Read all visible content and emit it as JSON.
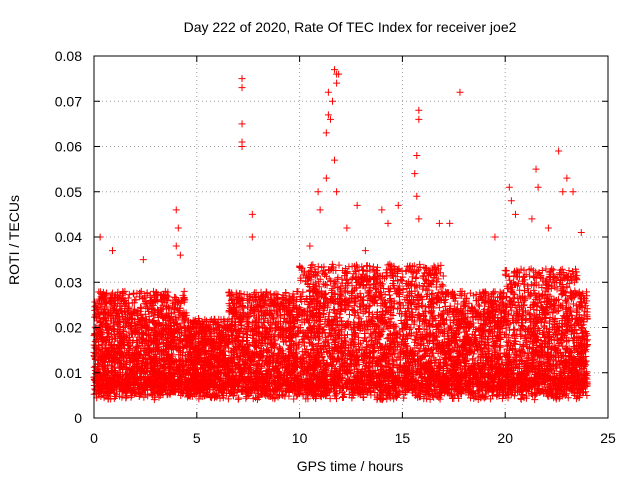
{
  "chart_data": {
    "type": "scatter",
    "title": "Day 222 of 2020, Rate Of TEC Index for receiver joe2",
    "xlabel": "GPS time / hours",
    "ylabel": "ROTI / TECUs",
    "xlim": [
      0,
      25
    ],
    "ylim": [
      0,
      0.08
    ],
    "x_ticks": [
      0,
      5,
      10,
      15,
      20,
      25
    ],
    "x_tick_labels": [
      "0",
      "5",
      "10",
      "15",
      "20",
      "25"
    ],
    "y_ticks": [
      0,
      0.01,
      0.02,
      0.03,
      0.04,
      0.05,
      0.06,
      0.07,
      0.08
    ],
    "y_tick_labels": [
      "0",
      "0.01",
      "0.02",
      "0.03",
      "0.04",
      "0.05",
      "0.06",
      "0.07",
      "0.08"
    ],
    "grid": true,
    "marker": "plus",
    "marker_color": "#ff0000",
    "dense_band": {
      "x_range": [
        0,
        24
      ],
      "y_typical": [
        0.003,
        0.03
      ]
    },
    "outliers": [
      {
        "x": 0.3,
        "y": 0.04
      },
      {
        "x": 0.9,
        "y": 0.037
      },
      {
        "x": 2.4,
        "y": 0.035
      },
      {
        "x": 4.0,
        "y": 0.046
      },
      {
        "x": 4.1,
        "y": 0.042
      },
      {
        "x": 4.0,
        "y": 0.038
      },
      {
        "x": 4.2,
        "y": 0.036
      },
      {
        "x": 7.2,
        "y": 0.075
      },
      {
        "x": 7.2,
        "y": 0.073
      },
      {
        "x": 7.2,
        "y": 0.065
      },
      {
        "x": 7.2,
        "y": 0.061
      },
      {
        "x": 7.2,
        "y": 0.06
      },
      {
        "x": 7.7,
        "y": 0.045
      },
      {
        "x": 7.7,
        "y": 0.04
      },
      {
        "x": 10.5,
        "y": 0.038
      },
      {
        "x": 10.9,
        "y": 0.05
      },
      {
        "x": 11.0,
        "y": 0.046
      },
      {
        "x": 11.3,
        "y": 0.053
      },
      {
        "x": 11.3,
        "y": 0.063
      },
      {
        "x": 11.4,
        "y": 0.067
      },
      {
        "x": 11.5,
        "y": 0.066
      },
      {
        "x": 11.4,
        "y": 0.072
      },
      {
        "x": 11.6,
        "y": 0.07
      },
      {
        "x": 11.7,
        "y": 0.077
      },
      {
        "x": 11.8,
        "y": 0.076
      },
      {
        "x": 11.9,
        "y": 0.076
      },
      {
        "x": 11.8,
        "y": 0.074
      },
      {
        "x": 11.7,
        "y": 0.057
      },
      {
        "x": 11.8,
        "y": 0.05
      },
      {
        "x": 12.3,
        "y": 0.042
      },
      {
        "x": 12.8,
        "y": 0.047
      },
      {
        "x": 13.2,
        "y": 0.037
      },
      {
        "x": 14.0,
        "y": 0.046
      },
      {
        "x": 14.3,
        "y": 0.043
      },
      {
        "x": 14.8,
        "y": 0.047
      },
      {
        "x": 15.8,
        "y": 0.068
      },
      {
        "x": 15.8,
        "y": 0.066
      },
      {
        "x": 15.7,
        "y": 0.058
      },
      {
        "x": 15.6,
        "y": 0.054
      },
      {
        "x": 15.7,
        "y": 0.049
      },
      {
        "x": 15.8,
        "y": 0.044
      },
      {
        "x": 16.8,
        "y": 0.043
      },
      {
        "x": 17.3,
        "y": 0.043
      },
      {
        "x": 17.8,
        "y": 0.072
      },
      {
        "x": 19.5,
        "y": 0.04
      },
      {
        "x": 20.2,
        "y": 0.051
      },
      {
        "x": 20.3,
        "y": 0.048
      },
      {
        "x": 20.5,
        "y": 0.045
      },
      {
        "x": 21.3,
        "y": 0.044
      },
      {
        "x": 21.5,
        "y": 0.055
      },
      {
        "x": 21.6,
        "y": 0.051
      },
      {
        "x": 22.1,
        "y": 0.042
      },
      {
        "x": 22.6,
        "y": 0.059
      },
      {
        "x": 22.8,
        "y": 0.05
      },
      {
        "x": 23.0,
        "y": 0.053
      },
      {
        "x": 23.3,
        "y": 0.05
      },
      {
        "x": 23.7,
        "y": 0.041
      }
    ]
  }
}
